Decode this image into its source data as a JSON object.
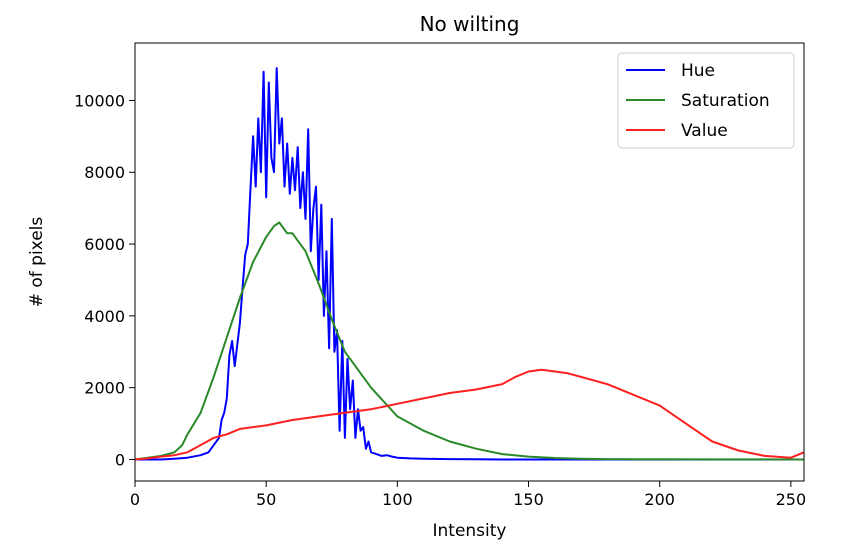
{
  "chart_data": {
    "type": "line",
    "title": "No wilting",
    "xlabel": "Intensity",
    "ylabel": "# of pixels",
    "xlim": [
      0,
      255
    ],
    "ylim": [
      -600,
      11600
    ],
    "xticks": [
      "0",
      "50",
      "100",
      "150",
      "200",
      "250"
    ],
    "yticks": [
      "0",
      "2000",
      "4000",
      "6000",
      "8000",
      "10000"
    ],
    "grid": false,
    "legend_position": "top-right",
    "series": [
      {
        "name": "Hue",
        "color": "#0000ff",
        "x": [
          0,
          5,
          10,
          15,
          20,
          25,
          28,
          30,
          32,
          33,
          34,
          35,
          36,
          37,
          38,
          39,
          40,
          41,
          42,
          43,
          44,
          45,
          46,
          47,
          48,
          49,
          50,
          51,
          52,
          53,
          54,
          55,
          56,
          57,
          58,
          59,
          60,
          61,
          62,
          63,
          64,
          65,
          66,
          67,
          68,
          69,
          70,
          71,
          72,
          73,
          74,
          75,
          76,
          77,
          78,
          79,
          80,
          81,
          82,
          83,
          84,
          85,
          86,
          87,
          88,
          89,
          90,
          92,
          94,
          96,
          98,
          100,
          105,
          110,
          120,
          130,
          140,
          150,
          160,
          170,
          180,
          200,
          220,
          240,
          255
        ],
        "y": [
          0,
          0,
          0,
          20,
          50,
          120,
          200,
          400,
          600,
          1100,
          1300,
          1700,
          2900,
          3300,
          2600,
          3200,
          3800,
          4800,
          5700,
          6000,
          7500,
          9000,
          7600,
          9500,
          8000,
          10800,
          7300,
          10500,
          8400,
          8000,
          10900,
          8800,
          9500,
          7600,
          8800,
          7400,
          8400,
          7500,
          8700,
          7000,
          8000,
          6700,
          9200,
          5800,
          7000,
          7600,
          5000,
          7100,
          4000,
          5800,
          3100,
          6700,
          3000,
          3600,
          800,
          3300,
          600,
          2800,
          1400,
          2200,
          600,
          1400,
          800,
          900,
          300,
          500,
          200,
          150,
          100,
          120,
          80,
          50,
          30,
          20,
          10,
          5,
          0,
          0,
          0,
          0,
          0,
          0,
          0,
          0,
          0
        ]
      },
      {
        "name": "Saturation",
        "color": "#2a8a2a",
        "x": [
          0,
          5,
          10,
          15,
          18,
          20,
          25,
          30,
          35,
          40,
          45,
          50,
          53,
          55,
          58,
          60,
          65,
          70,
          75,
          80,
          85,
          90,
          95,
          100,
          110,
          120,
          130,
          140,
          150,
          160,
          170,
          180,
          200,
          220,
          240,
          255
        ],
        "y": [
          0,
          50,
          100,
          200,
          400,
          700,
          1300,
          2300,
          3400,
          4500,
          5500,
          6200,
          6500,
          6600,
          6300,
          6300,
          5800,
          4900,
          3900,
          3000,
          2500,
          2000,
          1600,
          1200,
          800,
          500,
          300,
          150,
          80,
          40,
          20,
          10,
          5,
          3,
          2,
          0
        ]
      },
      {
        "name": "Value",
        "color": "#ff2020",
        "x": [
          0,
          5,
          10,
          15,
          20,
          25,
          30,
          35,
          40,
          50,
          60,
          70,
          80,
          90,
          100,
          110,
          120,
          130,
          140,
          145,
          150,
          155,
          160,
          165,
          170,
          180,
          190,
          200,
          210,
          220,
          230,
          240,
          250,
          255
        ],
        "y": [
          0,
          30,
          80,
          120,
          200,
          400,
          600,
          700,
          850,
          950,
          1100,
          1200,
          1300,
          1400,
          1550,
          1700,
          1850,
          1950,
          2100,
          2300,
          2450,
          2500,
          2450,
          2400,
          2300,
          2100,
          1800,
          1500,
          1000,
          500,
          250,
          100,
          50,
          200
        ]
      }
    ]
  }
}
